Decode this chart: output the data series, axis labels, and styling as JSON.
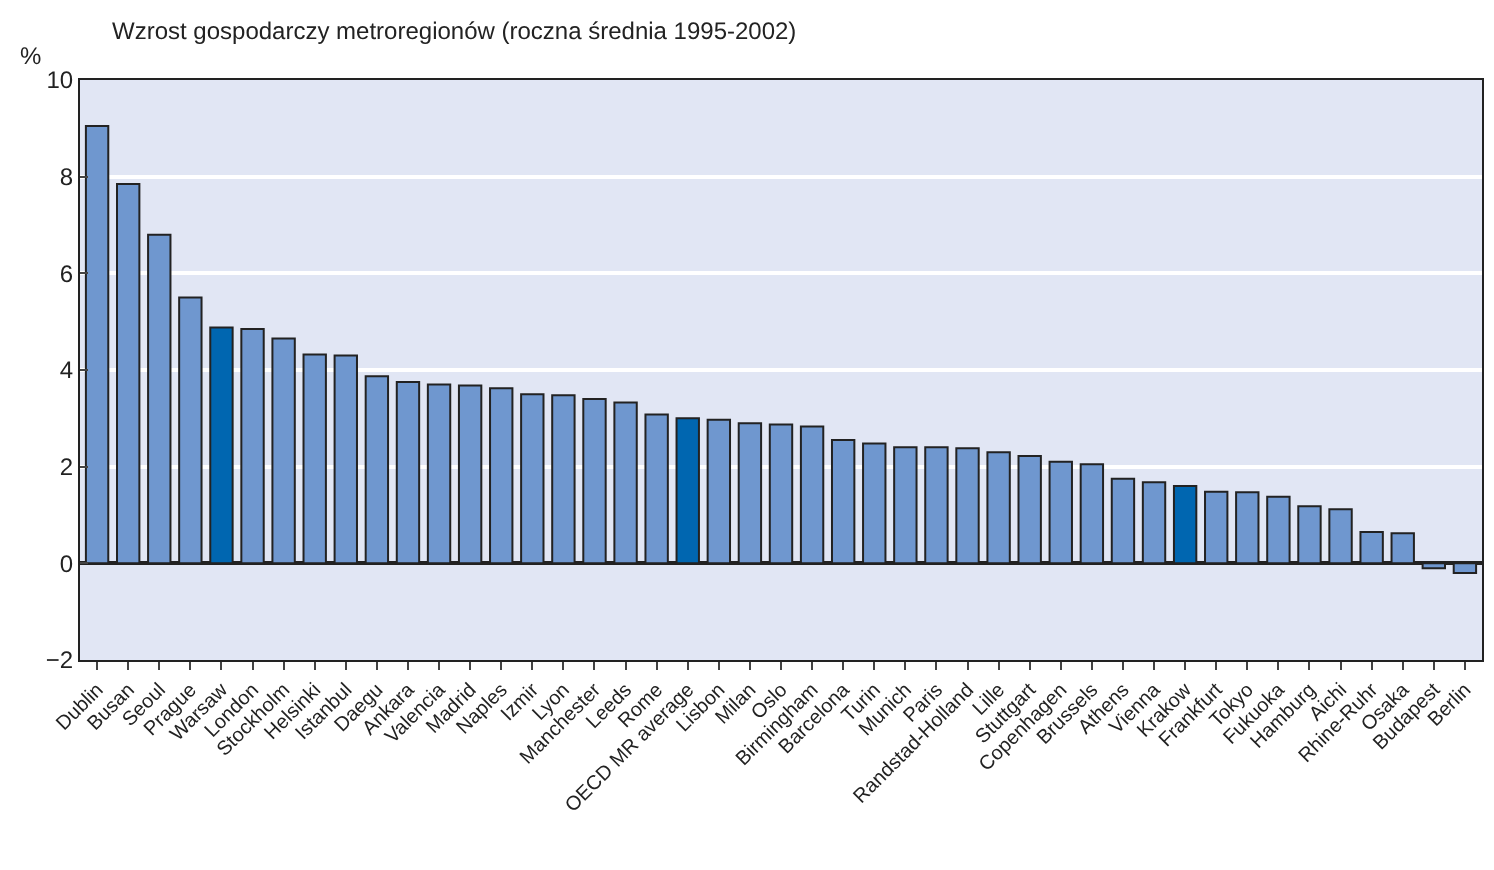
{
  "chart_data": {
    "type": "bar",
    "title": "Wzrost gospodarczy metroregionów (roczna średnia 1995-2002)",
    "ylabel": "%",
    "categories": [
      "Dublin",
      "Busan",
      "Seoul",
      "Prague",
      "Warsaw",
      "London",
      "Stockholm",
      "Helsinki",
      "Istanbul",
      "Daegu",
      "Ankara",
      "Valencia",
      "Madrid",
      "Naples",
      "Izmir",
      "Lyon",
      "Manchester",
      "Leeds",
      "Rome",
      "OECD MR average",
      "Lisbon",
      "Milan",
      "Oslo",
      "Birmingham",
      "Barcelona",
      "Turin",
      "Munich",
      "Paris",
      "Randstad-Holland",
      "Lille",
      "Stuttgart",
      "Copenhagen",
      "Brussels",
      "Athens",
      "Vienna",
      "Krakow",
      "Frankfurt",
      "Tokyo",
      "Fukuoka",
      "Hamburg",
      "Aichi",
      "Rhine-Ruhr",
      "Osaka",
      "Budapest",
      "Berlin"
    ],
    "values": [
      9.05,
      7.85,
      6.8,
      5.5,
      4.88,
      4.85,
      4.65,
      4.32,
      4.3,
      3.87,
      3.75,
      3.7,
      3.68,
      3.62,
      3.5,
      3.48,
      3.4,
      3.33,
      3.08,
      3.0,
      2.97,
      2.9,
      2.87,
      2.83,
      2.55,
      2.48,
      2.4,
      2.4,
      2.38,
      2.3,
      2.22,
      2.1,
      2.05,
      1.75,
      1.68,
      1.6,
      1.48,
      1.47,
      1.38,
      1.18,
      1.12,
      0.65,
      0.62,
      -0.1,
      -0.2
    ],
    "colors": [
      "#6f97cf",
      "#6f97cf",
      "#6f97cf",
      "#6f97cf",
      "#0066b0",
      "#6f97cf",
      "#6f97cf",
      "#6f97cf",
      "#6f97cf",
      "#6f97cf",
      "#6f97cf",
      "#6f97cf",
      "#6f97cf",
      "#6f97cf",
      "#6f97cf",
      "#6f97cf",
      "#6f97cf",
      "#6f97cf",
      "#6f97cf",
      "#0066b0",
      "#6f97cf",
      "#6f97cf",
      "#6f97cf",
      "#6f97cf",
      "#6f97cf",
      "#6f97cf",
      "#6f97cf",
      "#6f97cf",
      "#6f97cf",
      "#6f97cf",
      "#6f97cf",
      "#6f97cf",
      "#6f97cf",
      "#6f97cf",
      "#6f97cf",
      "#0066b0",
      "#6f97cf",
      "#6f97cf",
      "#6f97cf",
      "#6f97cf",
      "#6f97cf",
      "#6f97cf",
      "#6f97cf",
      "#6f97cf",
      "#6f97cf"
    ],
    "ylim": [
      -2,
      10
    ],
    "yticks": [
      {
        "value": -2,
        "label": "−2"
      },
      0,
      2,
      4,
      6,
      8,
      10
    ],
    "grid": "y"
  }
}
